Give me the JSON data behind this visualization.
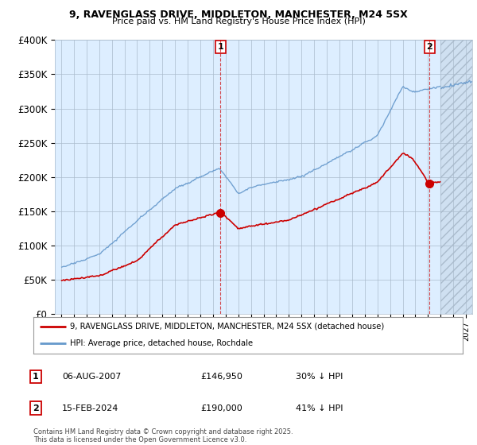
{
  "title1": "9, RAVENGLASS DRIVE, MIDDLETON, MANCHESTER, M24 5SX",
  "title2": "Price paid vs. HM Land Registry's House Price Index (HPI)",
  "legend_property": "9, RAVENGLASS DRIVE, MIDDLETON, MANCHESTER, M24 5SX (detached house)",
  "legend_hpi": "HPI: Average price, detached house, Rochdale",
  "marker1_date": "06-AUG-2007",
  "marker1_price": "£146,950",
  "marker1_hpi": "30% ↓ HPI",
  "marker2_date": "15-FEB-2024",
  "marker2_price": "£190,000",
  "marker2_hpi": "41% ↓ HPI",
  "footnote": "Contains HM Land Registry data © Crown copyright and database right 2025.\nThis data is licensed under the Open Government Licence v3.0.",
  "property_color": "#cc0000",
  "hpi_color": "#6699cc",
  "chart_bg_color": "#ddeeff",
  "background_color": "#ffffff",
  "grid_color": "#aabbcc",
  "ylim": [
    0,
    400000
  ],
  "yticks": [
    0,
    50000,
    100000,
    150000,
    200000,
    250000,
    300000,
    350000,
    400000
  ],
  "ytick_labels": [
    "£0",
    "£50K",
    "£100K",
    "£150K",
    "£200K",
    "£250K",
    "£300K",
    "£350K",
    "£400K"
  ],
  "xlim_start": 1994.5,
  "xlim_end": 2027.5,
  "marker1_x": 2007.6,
  "marker2_x": 2024.12,
  "marker1_y": 146950,
  "marker2_y": 190000,
  "hatched_region_start": 2025.0,
  "hatched_region_end": 2027.5
}
